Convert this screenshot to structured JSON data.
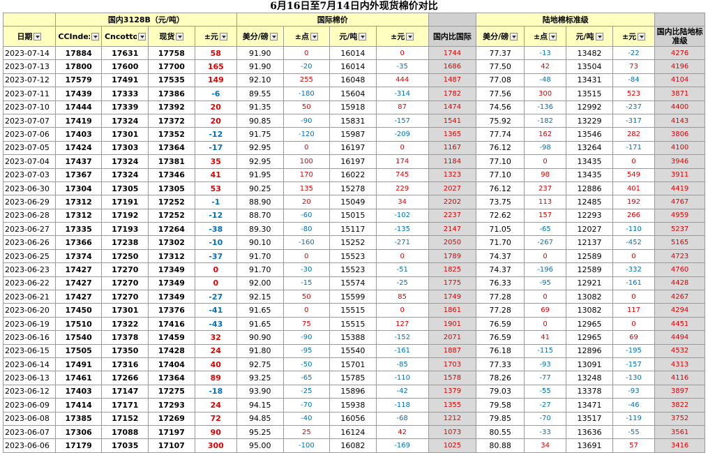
{
  "title": "6月16日至7月14日内外现货棉价对比",
  "groups": {
    "domestic": "国内3128B（元/吨）",
    "intl": "国际棉价",
    "land": "陆地棉标准级"
  },
  "headers": {
    "date": "日期",
    "ccindex": "CCIndex",
    "cncotton": "Cncotton",
    "spot": "现货",
    "chg": "±元",
    "usd1": "美分/磅",
    "pts1": "±点",
    "yuan1": "元/吨",
    "chg1": "±元",
    "cmp1": "国内比国际",
    "usd2": "美分/磅",
    "pts2": "±点",
    "yuan2": "元/吨",
    "chg2": "±元",
    "cmp2": "国内比陆地标准级"
  },
  "rows": [
    [
      "2023-07-14",
      "17884",
      "17631",
      "17758",
      "58",
      "91.90",
      "0",
      "16014",
      "0",
      "1744",
      "77.37",
      "-13",
      "13482",
      "-22",
      "4276"
    ],
    [
      "2023-07-13",
      "17800",
      "17600",
      "17700",
      "165",
      "91.90",
      "-20",
      "16014",
      "-35",
      "1686",
      "77.50",
      "42",
      "13504",
      "73",
      "4196"
    ],
    [
      "2023-07-12",
      "17579",
      "17491",
      "17535",
      "149",
      "92.10",
      "255",
      "16048",
      "444",
      "1487",
      "77.08",
      "-48",
      "13431",
      "-84",
      "4104"
    ],
    [
      "2023-07-11",
      "17439",
      "17333",
      "17386",
      "-6",
      "89.55",
      "-180",
      "15604",
      "-314",
      "1782",
      "77.56",
      "300",
      "13515",
      "523",
      "3871"
    ],
    [
      "2023-07-10",
      "17444",
      "17339",
      "17392",
      "20",
      "91.35",
      "50",
      "15918",
      "87",
      "1474",
      "74.56",
      "-136",
      "12992",
      "-237",
      "4400"
    ],
    [
      "2023-07-07",
      "17419",
      "17324",
      "17372",
      "20",
      "90.85",
      "-90",
      "15831",
      "-157",
      "1541",
      "75.92",
      "-182",
      "13229",
      "-317",
      "4143"
    ],
    [
      "2023-07-06",
      "17403",
      "17301",
      "17352",
      "-12",
      "91.75",
      "-120",
      "15987",
      "-209",
      "1365",
      "77.74",
      "162",
      "13546",
      "282",
      "3806"
    ],
    [
      "2023-07-05",
      "17424",
      "17303",
      "17364",
      "-17",
      "92.95",
      "0",
      "16197",
      "0",
      "1167",
      "76.12",
      "-98",
      "13264",
      "-171",
      "4100"
    ],
    [
      "2023-07-04",
      "17437",
      "17324",
      "17381",
      "35",
      "92.95",
      "100",
      "16197",
      "174",
      "1184",
      "77.10",
      "0",
      "13435",
      "0",
      "3946"
    ],
    [
      "2023-07-03",
      "17367",
      "17324",
      "17346",
      "41",
      "91.95",
      "170",
      "16022",
      "745",
      "1323",
      "77.10",
      "98",
      "13435",
      "549",
      "3911"
    ],
    [
      "2023-06-30",
      "17304",
      "17305",
      "17305",
      "53",
      "90.25",
      "135",
      "15278",
      "229",
      "2027",
      "76.12",
      "237",
      "12886",
      "401",
      "4419"
    ],
    [
      "2023-06-29",
      "17312",
      "17191",
      "17252",
      "-1",
      "88.90",
      "20",
      "15049",
      "34",
      "2202",
      "73.75",
      "113",
      "12485",
      "192",
      "4767"
    ],
    [
      "2023-06-28",
      "17312",
      "17192",
      "17252",
      "-12",
      "88.70",
      "-60",
      "15015",
      "-102",
      "2237",
      "72.62",
      "157",
      "12293",
      "266",
      "4959"
    ],
    [
      "2023-06-27",
      "17335",
      "17193",
      "17264",
      "-38",
      "89.30",
      "-80",
      "15117",
      "-135",
      "2147",
      "71.05",
      "-65",
      "12027",
      "-110",
      "5237"
    ],
    [
      "2023-06-26",
      "17366",
      "17238",
      "17302",
      "-10",
      "90.10",
      "-160",
      "15252",
      "-271",
      "2050",
      "71.70",
      "-267",
      "12137",
      "-452",
      "5165"
    ],
    [
      "2023-06-25",
      "17374",
      "17250",
      "17312",
      "-37",
      "91.70",
      "0",
      "15523",
      "0",
      "1789",
      "74.37",
      "0",
      "12589",
      "0",
      "4723"
    ],
    [
      "2023-06-23",
      "17427",
      "17270",
      "17349",
      "0",
      "91.70",
      "-30",
      "15523",
      "-51",
      "1825",
      "74.37",
      "-196",
      "12589",
      "-332",
      "4760"
    ],
    [
      "2023-06-22",
      "17427",
      "17270",
      "17349",
      "0",
      "92.00",
      "-15",
      "15574",
      "-25",
      "1775",
      "76.33",
      "-95",
      "12921",
      "-161",
      "4428"
    ],
    [
      "2023-06-21",
      "17427",
      "17270",
      "17349",
      "-27",
      "92.15",
      "50",
      "15599",
      "85",
      "1749",
      "77.28",
      "0",
      "13082",
      "0",
      "4267"
    ],
    [
      "2023-06-20",
      "17450",
      "17301",
      "17376",
      "-41",
      "91.65",
      "0",
      "15515",
      "0",
      "1861",
      "77.28",
      "69",
      "13082",
      "117",
      "4294"
    ],
    [
      "2023-06-19",
      "17510",
      "17322",
      "17416",
      "-43",
      "91.65",
      "75",
      "15515",
      "127",
      "1901",
      "76.59",
      "0",
      "12965",
      "0",
      "4451"
    ],
    [
      "2023-06-16",
      "17540",
      "17378",
      "17459",
      "32",
      "90.90",
      "-90",
      "15388",
      "-152",
      "2071",
      "76.59",
      "41",
      "12965",
      "69",
      "4494"
    ],
    [
      "2023-06-15",
      "17505",
      "17350",
      "17428",
      "24",
      "91.80",
      "-95",
      "15540",
      "-161",
      "1887",
      "76.18",
      "-115",
      "12896",
      "-195",
      "4532"
    ],
    [
      "2023-06-14",
      "17491",
      "17316",
      "17404",
      "40",
      "92.75",
      "-50",
      "15701",
      "-85",
      "1703",
      "77.33",
      "-93",
      "13091",
      "-157",
      "4313"
    ],
    [
      "2023-06-13",
      "17461",
      "17266",
      "17364",
      "89",
      "93.25",
      "-65",
      "15785",
      "-110",
      "1578",
      "78.26",
      "-77",
      "13248",
      "-130",
      "4116"
    ],
    [
      "2023-06-12",
      "17403",
      "17147",
      "17275",
      "-18",
      "93.90",
      "-25",
      "15896",
      "-42",
      "1379",
      "79.03",
      "-55",
      "13378",
      "-93",
      "3897"
    ],
    [
      "2023-06-09",
      "17414",
      "17171",
      "17293",
      "24",
      "94.15",
      "-70",
      "15938",
      "-118",
      "1355",
      "79.58",
      "-27",
      "13471",
      "-46",
      "3822"
    ],
    [
      "2023-06-08",
      "17385",
      "17152",
      "17269",
      "72",
      "94.85",
      "-40",
      "16056",
      "-68",
      "1212",
      "79.85",
      "-70",
      "13517",
      "-119",
      "3752"
    ],
    [
      "2023-06-07",
      "17306",
      "17088",
      "17197",
      "90",
      "95.25",
      "25",
      "16124",
      "42",
      "1073",
      "80.55",
      "-33",
      "13636",
      "-55",
      "3561"
    ],
    [
      "2023-06-06",
      "17179",
      "17035",
      "17107",
      "300",
      "95.00",
      "-100",
      "16082",
      "-169",
      "1025",
      "80.88",
      "34",
      "13691",
      "57",
      "3416"
    ]
  ],
  "colors": {
    "header_bg": "#ffffc0",
    "gray": "#d9d9d9",
    "positive": "#e00000",
    "negative": "#0070c0"
  }
}
